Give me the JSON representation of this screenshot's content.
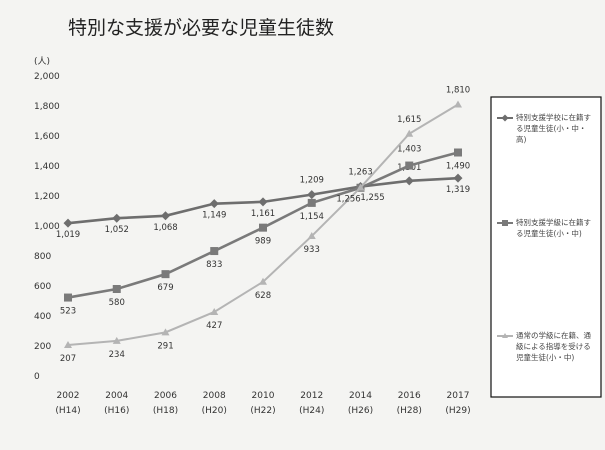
{
  "chart_data": {
    "type": "line",
    "title": "特別な支援が必要な児童生徒数",
    "ylabel": "(人)",
    "xlabel": "",
    "ylim": [
      0,
      2000
    ],
    "yticks": [
      0,
      200,
      400,
      600,
      800,
      1000,
      1200,
      1400,
      1600,
      1800,
      2000
    ],
    "ytick_labels": [
      "0",
      "200",
      "400",
      "600",
      "800",
      "1,000",
      "1,200",
      "1,400",
      "1,600",
      "1,800",
      "2,000"
    ],
    "x": [
      "2002",
      "2004",
      "2006",
      "2008",
      "2010",
      "2012",
      "2014",
      "2016",
      "2017"
    ],
    "x_sublabels": [
      "(H14)",
      "(H16)",
      "(H18)",
      "(H20)",
      "(H22)",
      "(H24)",
      "(H26)",
      "(H28)",
      "(H29)"
    ],
    "grid": false,
    "legend_position": "right",
    "series": [
      {
        "name": "特別支援学校に在籍する児童生徒(小・中・高)",
        "color": "#6e6e6e",
        "marker": "diamond",
        "values": [
          1019,
          1052,
          1068,
          1149,
          1161,
          1209,
          1263,
          1301,
          1319
        ],
        "labels": [
          "1,019",
          "1,052",
          "1,068",
          "1,149",
          "1,161",
          "1,209",
          "1,263",
          "1,301",
          "1,319"
        ]
      },
      {
        "name": "特別支援学級に在籍する児童生徒(小・中)",
        "color": "#7a7a7a",
        "marker": "square",
        "values": [
          523,
          580,
          679,
          833,
          989,
          1154,
          1255,
          1403,
          1490
        ],
        "labels": [
          "523",
          "580",
          "679",
          "833",
          "989",
          "1,154",
          "1,255",
          "1,403",
          "1,490"
        ]
      },
      {
        "name": "通常の学級に在籍、通級による指導を受ける児童生徒(小・中)",
        "color": "#b4b4b4",
        "marker": "triangle",
        "values": [
          207,
          234,
          291,
          427,
          628,
          933,
          1256,
          1615,
          1810
        ],
        "labels": [
          "207",
          "234",
          "291",
          "427",
          "628",
          "933",
          "1,256",
          "1,615",
          "1,810"
        ]
      }
    ]
  }
}
